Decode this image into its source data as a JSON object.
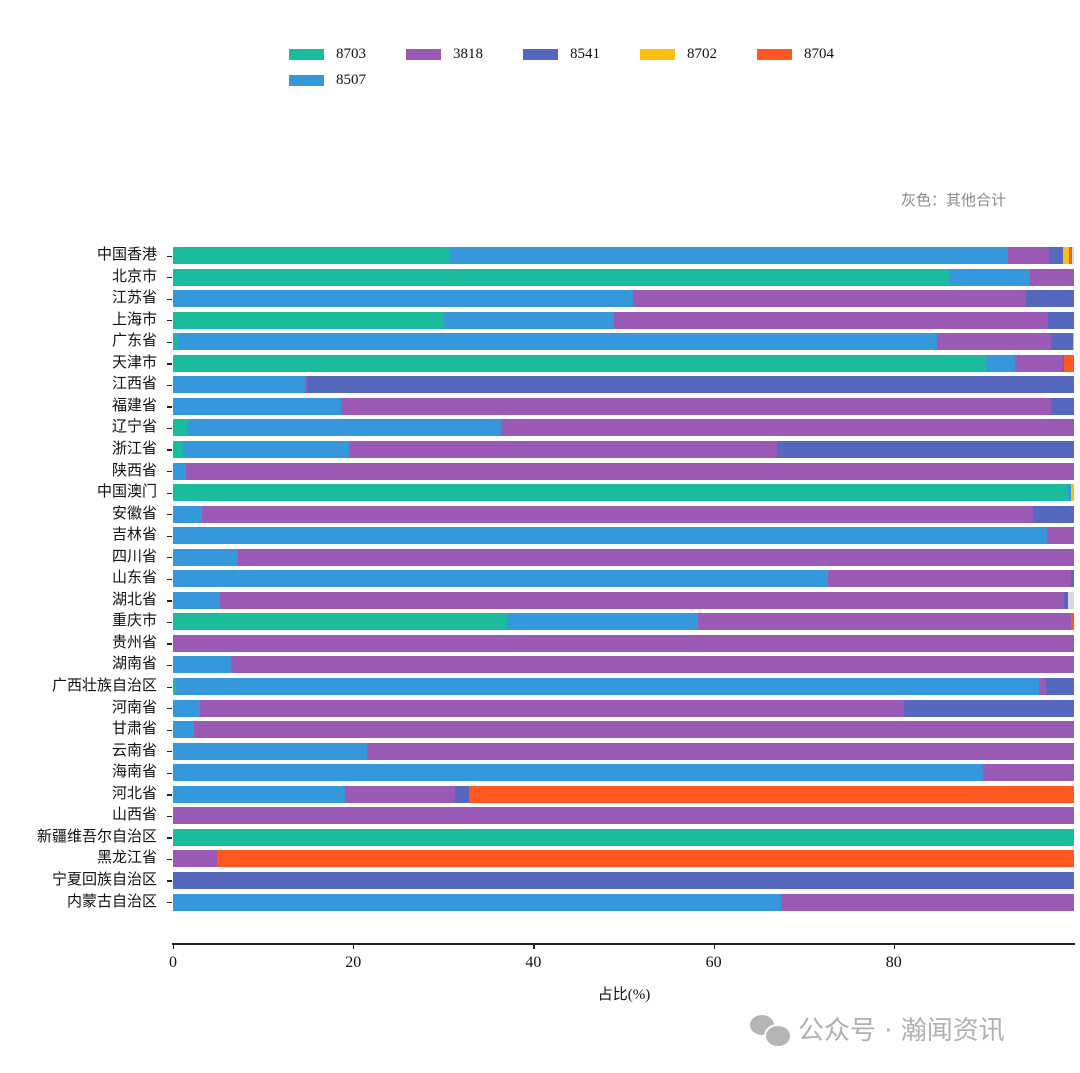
{
  "chart_data": {
    "type": "bar",
    "orientation": "horizontal",
    "stacked": true,
    "title": "",
    "xlabel": "占比(%)",
    "ylabel": "",
    "xlim": [
      0,
      100
    ],
    "xticks": [
      0,
      20,
      40,
      60,
      80
    ],
    "grid": false,
    "legend_position": "top",
    "annotation": "灰色：其他合计",
    "legend": [
      {
        "name": "8703",
        "color": "#1abc9c"
      },
      {
        "name": "3818",
        "color": "#9b59b6"
      },
      {
        "name": "8541",
        "color": "#5568bd"
      },
      {
        "name": "8702",
        "color": "#fdbf10"
      },
      {
        "name": "8704",
        "color": "#ff5722"
      },
      {
        "name": "8507",
        "color": "#3498db"
      }
    ],
    "segment_order": [
      "8703",
      "8507",
      "3818",
      "8541",
      "8702",
      "8704",
      "其他"
    ],
    "colors": {
      "8703": "#1abc9c",
      "8507": "#3498db",
      "3818": "#9b59b6",
      "8541": "#5568bd",
      "8702": "#fdbf10",
      "8704": "#ff5722",
      "其他": "#d8d8d8"
    },
    "categories": [
      "中国香港",
      "北京市",
      "江苏省",
      "上海市",
      "广东省",
      "天津市",
      "江西省",
      "福建省",
      "辽宁省",
      "浙江省",
      "陕西省",
      "中国澳门",
      "安徽省",
      "吉林省",
      "四川省",
      "山东省",
      "湖北省",
      "重庆市",
      "贵州省",
      "湖南省",
      "广西壮族自治区",
      "河南省",
      "甘肃省",
      "云南省",
      "海南省",
      "河北省",
      "山西省",
      "新疆维吾尔自治区",
      "黑龙江省",
      "宁夏回族自治区",
      "内蒙古自治区"
    ],
    "series": [
      {
        "name": "8703",
        "values": [
          30.7,
          86.1,
          0,
          30.1,
          0.5,
          90.2,
          0,
          0,
          1.5,
          1.1,
          0,
          99.3,
          0.1,
          0,
          0,
          0,
          0,
          37.1,
          0,
          0,
          0.3,
          0,
          0,
          0,
          0,
          0,
          0,
          100,
          0,
          0,
          0
        ]
      },
      {
        "name": "8507",
        "values": [
          62.0,
          9.0,
          51.1,
          18.8,
          84.3,
          3.3,
          14.6,
          18.6,
          34.9,
          18.4,
          1.4,
          0.4,
          3.1,
          97.0,
          7.2,
          72.7,
          5.2,
          21.2,
          0,
          6.4,
          95.8,
          3.0,
          2.3,
          21.5,
          89.9,
          19.1,
          0,
          0,
          0,
          0,
          67.5
        ]
      },
      {
        "name": "3818",
        "values": [
          4.5,
          4.9,
          43.6,
          48.2,
          12.6,
          5.3,
          0.3,
          78.9,
          63.6,
          47.5,
          98.6,
          0,
          92.2,
          3.0,
          92.8,
          27.0,
          93.7,
          41.4,
          100,
          93.6,
          0.8,
          78.1,
          97.7,
          78.5,
          10.1,
          12.2,
          100,
          0,
          4.9,
          0,
          32.5
        ]
      },
      {
        "name": "8541",
        "values": [
          1.6,
          0,
          5.3,
          2.9,
          2.5,
          0.1,
          85.1,
          2.5,
          0,
          33.0,
          0,
          0,
          4.6,
          0,
          0,
          0.3,
          0.4,
          0,
          0,
          0,
          3.1,
          18.9,
          0,
          0,
          0,
          1.6,
          0,
          0,
          0,
          100,
          0
        ]
      },
      {
        "name": "8702",
        "values": [
          0.6,
          0,
          0,
          0,
          0.1,
          0,
          0,
          0,
          0,
          0,
          0,
          0.3,
          0,
          0,
          0,
          0,
          0,
          0,
          0,
          0,
          0,
          0,
          0,
          0,
          0,
          0,
          0,
          0,
          0,
          0,
          0
        ]
      },
      {
        "name": "8704",
        "values": [
          0.4,
          0,
          0,
          0,
          0,
          1.1,
          0,
          0,
          0,
          0,
          0,
          0,
          0,
          0,
          0,
          0,
          0,
          0.3,
          0,
          0,
          0,
          0,
          0,
          0,
          0,
          67.1,
          0,
          0,
          95.1,
          0,
          0
        ]
      },
      {
        "name": "其他",
        "values": [
          0.2,
          0,
          0,
          0,
          0,
          0,
          0,
          0,
          0,
          0,
          0,
          0,
          0,
          0,
          0,
          0,
          0.7,
          0,
          0,
          0,
          0,
          0,
          0,
          0,
          0,
          0,
          0,
          0,
          0,
          0,
          0
        ]
      }
    ]
  },
  "legend": {
    "items": [
      {
        "label": "8703",
        "color": "#1abc9c"
      },
      {
        "label": "3818",
        "color": "#9b59b6"
      },
      {
        "label": "8541",
        "color": "#5568bd"
      },
      {
        "label": "8702",
        "color": "#fdbf10"
      },
      {
        "label": "8704",
        "color": "#ff5722"
      },
      {
        "label": "8507",
        "color": "#3498db"
      }
    ]
  },
  "annotation": {
    "text": "灰色：其他合计"
  },
  "axis": {
    "xlabel": "占比(%)",
    "xticks": [
      "0",
      "20",
      "40",
      "60",
      "80"
    ]
  },
  "watermark": {
    "text": "公众号 · 瀚闻资讯",
    "icon": "wechat-icon"
  }
}
